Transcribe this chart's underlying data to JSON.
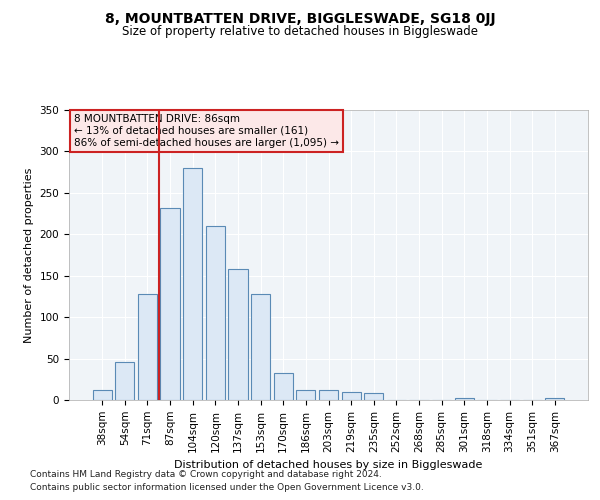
{
  "title": "8, MOUNTBATTEN DRIVE, BIGGLESWADE, SG18 0JJ",
  "subtitle": "Size of property relative to detached houses in Biggleswade",
  "xlabel": "Distribution of detached houses by size in Biggleswade",
  "ylabel": "Number of detached properties",
  "categories": [
    "38sqm",
    "54sqm",
    "71sqm",
    "87sqm",
    "104sqm",
    "120sqm",
    "137sqm",
    "153sqm",
    "170sqm",
    "186sqm",
    "203sqm",
    "219sqm",
    "235sqm",
    "252sqm",
    "268sqm",
    "285sqm",
    "301sqm",
    "318sqm",
    "334sqm",
    "351sqm",
    "367sqm"
  ],
  "values": [
    12,
    46,
    128,
    232,
    280,
    210,
    158,
    128,
    33,
    12,
    12,
    10,
    8,
    0,
    0,
    0,
    3,
    0,
    0,
    0,
    3
  ],
  "bar_color": "#dce8f5",
  "bar_edge_color": "#5a8ab5",
  "annotation_line1": "8 MOUNTBATTEN DRIVE: 86sqm",
  "annotation_line2": "← 13% of detached houses are smaller (161)",
  "annotation_line3": "86% of semi-detached houses are larger (1,095) →",
  "annotation_box_facecolor": "#fce8e8",
  "annotation_box_edgecolor": "#cc2222",
  "highlight_line_color": "#cc2222",
  "ylim": [
    0,
    350
  ],
  "yticks": [
    0,
    50,
    100,
    150,
    200,
    250,
    300,
    350
  ],
  "footer1": "Contains HM Land Registry data © Crown copyright and database right 2024.",
  "footer2": "Contains public sector information licensed under the Open Government Licence v3.0.",
  "background_color": "#ffffff",
  "plot_bg_color": "#f0f4f8",
  "grid_color": "#ffffff",
  "title_fontsize": 10,
  "subtitle_fontsize": 8.5,
  "axis_fontsize": 8,
  "tick_fontsize": 7.5,
  "footer_fontsize": 6.5
}
